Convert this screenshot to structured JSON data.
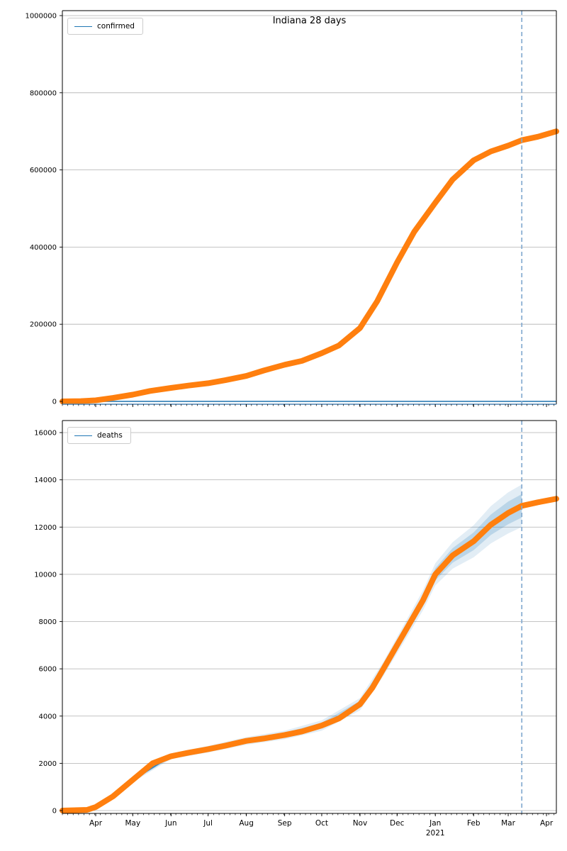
{
  "figure": {
    "title": "Indiana 28 days"
  },
  "chart_data": [
    {
      "type": "line",
      "title": "Indiana 28 days",
      "legend_label": "confirmed",
      "legend_position": "upper left",
      "grid": "horizontal",
      "xlim_days": [
        0,
        400
      ],
      "ylim": [
        0,
        1000000
      ],
      "yticks": [
        0,
        200000,
        400000,
        600000,
        800000,
        1000000
      ],
      "ytick_labels": [
        "0",
        "200000",
        "400000",
        "600000",
        "800000",
        "1000000"
      ],
      "x_months": {
        "labels": [
          "Apr",
          "May",
          "Jun",
          "Jul",
          "Aug",
          "Sep",
          "Oct",
          "Nov",
          "Dec",
          "Jan",
          "Feb",
          "Mar",
          "Apr"
        ],
        "days": [
          27,
          57,
          88,
          118,
          149,
          180,
          210,
          241,
          271,
          302,
          333,
          361,
          392
        ],
        "year_label": "2021",
        "year_month_index": 9,
        "show_labels": false
      },
      "vline_day": 372,
      "series": [
        {
          "name": "confirmed-actual",
          "x_days": [
            0,
            15,
            27,
            41,
            57,
            71,
            88,
            102,
            118,
            132,
            149,
            163,
            180,
            194,
            210,
            224,
            241,
            255,
            271,
            285,
            302,
            316,
            333,
            347,
            361,
            372,
            385,
            400
          ],
          "values": [
            0,
            800,
            2700,
            9000,
            17500,
            27000,
            35000,
            41000,
            47000,
            55000,
            66000,
            80000,
            95000,
            105000,
            125000,
            145000,
            190000,
            260000,
            360000,
            440000,
            515000,
            575000,
            625000,
            648000,
            663000,
            677000,
            686000,
            700000
          ]
        }
      ],
      "forecast_series": {
        "name": "confirmed-forecast",
        "x_days": [
          0,
          400
        ],
        "values": [
          0,
          0
        ]
      },
      "colors": {
        "actual": "#ff7f0e",
        "forecast": "#1f77b4",
        "vline": "#85abd0",
        "grid": "#b0b0b0",
        "bottom_spine": "#4d82b0"
      }
    },
    {
      "type": "line",
      "title": "",
      "legend_label": "deaths",
      "legend_position": "upper left",
      "grid": "horizontal",
      "xlim_days": [
        0,
        400
      ],
      "ylim": [
        0,
        16000
      ],
      "yticks": [
        0,
        2000,
        4000,
        6000,
        8000,
        10000,
        12000,
        14000,
        16000
      ],
      "ytick_labels": [
        "0",
        "2000",
        "4000",
        "6000",
        "8000",
        "10000",
        "12000",
        "14000",
        "16000"
      ],
      "x_months": {
        "labels": [
          "Apr",
          "May",
          "Jun",
          "Jul",
          "Aug",
          "Sep",
          "Oct",
          "Nov",
          "Dec",
          "Jan",
          "Feb",
          "Mar",
          "Apr"
        ],
        "days": [
          27,
          57,
          88,
          118,
          149,
          180,
          210,
          241,
          271,
          302,
          333,
          361,
          392
        ],
        "year_label": "2021",
        "year_month_index": 9,
        "show_labels": true
      },
      "vline_day": 372,
      "series": [
        {
          "name": "deaths-actual",
          "x_days": [
            0,
            20,
            27,
            41,
            57,
            73,
            88,
            102,
            118,
            132,
            149,
            163,
            180,
            194,
            210,
            224,
            241,
            251,
            260,
            271,
            281,
            292,
            302,
            316,
            333,
            347,
            361,
            372,
            385,
            400
          ],
          "values": [
            0,
            30,
            150,
            600,
            1300,
            2000,
            2300,
            2450,
            2600,
            2750,
            2950,
            3050,
            3200,
            3350,
            3600,
            3900,
            4500,
            5200,
            6000,
            7000,
            7900,
            8900,
            10000,
            10800,
            11400,
            12100,
            12600,
            12900,
            13050,
            13200
          ]
        }
      ],
      "forecast_series": {
        "name": "deaths-forecast",
        "x_days": [
          57,
          88,
          118,
          149,
          180,
          210,
          241,
          260,
          271,
          281,
          292,
          302,
          316,
          333,
          347,
          361,
          372
        ],
        "values": [
          1300,
          2300,
          2600,
          2950,
          3200,
          3600,
          4500,
          6000,
          7000,
          7900,
          8900,
          10000,
          10800,
          11400,
          12100,
          12600,
          12900
        ]
      },
      "band": {
        "x_days": [
          57,
          88,
          118,
          149,
          180,
          210,
          241,
          260,
          271,
          281,
          292,
          302,
          316,
          333,
          347,
          361,
          372
        ],
        "center": [
          1300,
          2300,
          2600,
          2950,
          3200,
          3600,
          4500,
          6000,
          7000,
          7900,
          8900,
          10000,
          10800,
          11400,
          12100,
          12600,
          12900
        ],
        "half_width_outer": [
          100,
          120,
          140,
          160,
          180,
          220,
          260,
          300,
          340,
          380,
          420,
          470,
          560,
          680,
          790,
          870,
          900
        ],
        "half_width_inner": [
          55,
          66,
          77,
          88,
          99,
          121,
          143,
          165,
          187,
          209,
          231,
          259,
          308,
          374,
          434,
          479,
          495
        ]
      },
      "colors": {
        "actual": "#ff7f0e",
        "forecast": "#1f77b4",
        "vline": "#85abd0",
        "grid": "#b0b0b0",
        "bottom_spine": "#000000"
      }
    }
  ]
}
